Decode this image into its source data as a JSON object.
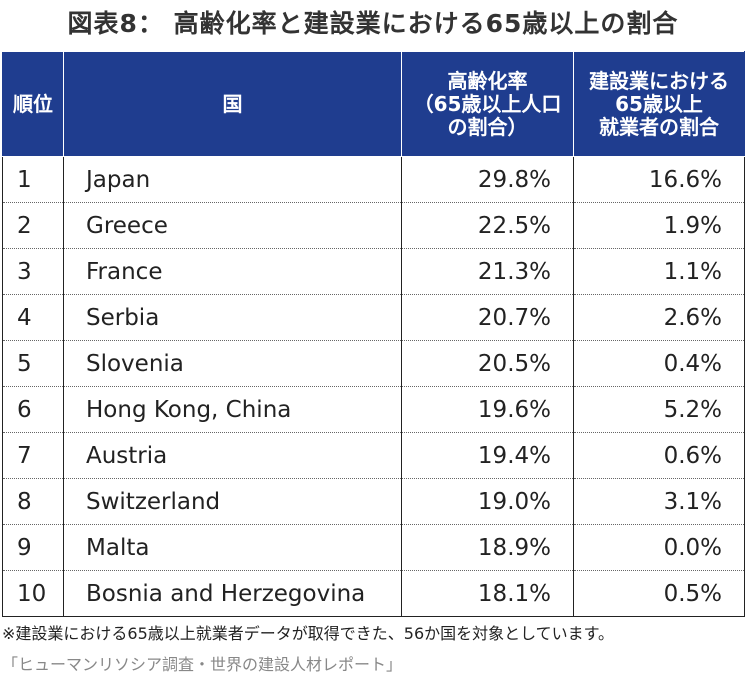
{
  "title": "図表8： 高齢化率と建設業における65歳以上の割合",
  "table": {
    "headers": {
      "rank": "順位",
      "country": "国",
      "aging_rate": [
        "高齢化率",
        "（65歳以上人口",
        "の割合）"
      ],
      "construction_share": [
        "建設業における",
        "65歳以上",
        "就業者の割合"
      ]
    },
    "rows": [
      {
        "rank": "1",
        "country": "Japan",
        "aging_rate": "29.8%",
        "construction_share": "16.6%"
      },
      {
        "rank": "2",
        "country": "Greece",
        "aging_rate": "22.5%",
        "construction_share": "1.9%"
      },
      {
        "rank": "3",
        "country": "France",
        "aging_rate": "21.3%",
        "construction_share": "1.1%"
      },
      {
        "rank": "4",
        "country": "Serbia",
        "aging_rate": "20.7%",
        "construction_share": "2.6%"
      },
      {
        "rank": "5",
        "country": "Slovenia",
        "aging_rate": "20.5%",
        "construction_share": "0.4%"
      },
      {
        "rank": "6",
        "country": "Hong Kong, China",
        "aging_rate": "19.6%",
        "construction_share": "5.2%"
      },
      {
        "rank": "7",
        "country": "Austria",
        "aging_rate": "19.4%",
        "construction_share": "0.6%"
      },
      {
        "rank": "8",
        "country": "Switzerland",
        "aging_rate": "19.0%",
        "construction_share": "3.1%"
      },
      {
        "rank": "9",
        "country": "Malta",
        "aging_rate": "18.9%",
        "construction_share": "0.0%"
      },
      {
        "rank": "10",
        "country": "Bosnia and Herzegovina",
        "aging_rate": "18.1%",
        "construction_share": "0.5%"
      }
    ]
  },
  "note": "※建設業における65歳以上就業者データが取得できた、56か国を対象としています。",
  "source": "「ヒューマンリソシア調査・世界の建設人材レポート」",
  "colors": {
    "header_bg": "#1f3d8f",
    "header_text": "#ffffff",
    "source_text": "#888888"
  }
}
